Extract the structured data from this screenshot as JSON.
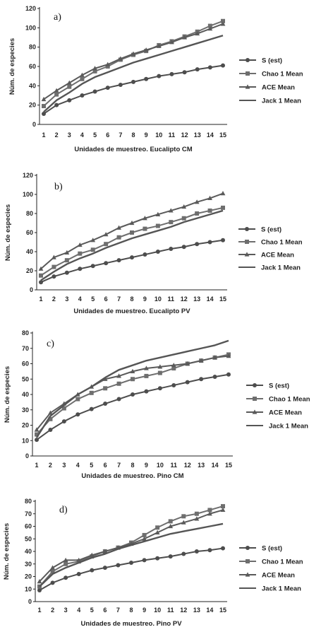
{
  "chart_data": [
    {
      "type": "line",
      "panel_label": "a)",
      "xlabel": "Unidades de muestreo. Eucalipto CM",
      "ylabel": "Núm. de especies",
      "ylim": [
        0,
        120
      ],
      "yticks": [
        0,
        20,
        40,
        60,
        80,
        100,
        120
      ],
      "x": [
        1,
        2,
        3,
        4,
        5,
        6,
        7,
        8,
        9,
        10,
        11,
        12,
        13,
        14,
        15
      ],
      "legend_position": "right",
      "series": [
        {
          "name": "S (est)",
          "marker": "circle",
          "values": [
            11,
            20,
            25,
            30,
            34,
            38,
            41,
            44,
            47,
            50,
            52,
            54,
            57,
            59,
            61
          ]
        },
        {
          "name": "Chao 1 Mean",
          "marker": "square",
          "values": [
            19,
            31,
            39,
            47,
            55,
            60,
            67,
            72,
            76,
            82,
            86,
            91,
            96,
            102,
            107
          ]
        },
        {
          "name": "ACE Mean",
          "marker": "triangle",
          "values": [
            26,
            35,
            43,
            51,
            58,
            62,
            68,
            73,
            77,
            81,
            85,
            90,
            94,
            99,
            104
          ]
        },
        {
          "name": "Jack 1 Mean",
          "marker": "none",
          "values": [
            13,
            25,
            33,
            42,
            49,
            54,
            59,
            64,
            68,
            72,
            76,
            80,
            84,
            88,
            92
          ]
        }
      ]
    },
    {
      "type": "line",
      "panel_label": "b)",
      "xlabel": "Unidades de muestreo. Eucalipto PV",
      "ylabel": "Núm. de especies",
      "ylim": [
        0,
        120
      ],
      "yticks": [
        0,
        20,
        40,
        60,
        80,
        100,
        120
      ],
      "x": [
        1,
        2,
        3,
        4,
        5,
        6,
        7,
        8,
        9,
        10,
        11,
        12,
        13,
        14,
        15
      ],
      "legend_position": "right",
      "series": [
        {
          "name": "S (est)",
          "marker": "circle",
          "values": [
            8,
            14,
            18,
            22,
            25,
            28,
            31,
            34,
            37,
            40,
            43,
            45,
            48,
            50,
            52
          ]
        },
        {
          "name": "Chao 1 Mean",
          "marker": "square",
          "values": [
            15,
            24,
            31,
            38,
            42,
            48,
            55,
            60,
            64,
            67,
            71,
            75,
            80,
            83,
            86
          ]
        },
        {
          "name": "ACE Mean",
          "marker": "triangle",
          "values": [
            22,
            34,
            39,
            47,
            52,
            58,
            65,
            70,
            75,
            79,
            83,
            87,
            92,
            96,
            101
          ]
        },
        {
          "name": "Jack 1 Mean",
          "marker": "none",
          "values": [
            10,
            19,
            27,
            33,
            38,
            44,
            49,
            54,
            58,
            62,
            66,
            71,
            75,
            79,
            83
          ]
        }
      ]
    },
    {
      "type": "line",
      "panel_label": "c)",
      "xlabel": "Unidades de muestreo. Pino CM",
      "ylabel": "Núm. de especies",
      "ylim": [
        0,
        80
      ],
      "yticks": [
        0,
        10,
        20,
        30,
        40,
        50,
        60,
        70,
        80
      ],
      "x": [
        1,
        2,
        3,
        4,
        5,
        6,
        7,
        8,
        9,
        10,
        11,
        12,
        13,
        14,
        15
      ],
      "legend_position": "right",
      "series": [
        {
          "name": "S (est)",
          "marker": "circle",
          "values": [
            10.5,
            17,
            22.5,
            27,
            30.5,
            34,
            37,
            40,
            42,
            44,
            46,
            48,
            50,
            51.5,
            53
          ]
        },
        {
          "name": "Chao 1 Mean",
          "marker": "square",
          "values": [
            14,
            24,
            31,
            37,
            41,
            44,
            47,
            50,
            52,
            54,
            57,
            60,
            62,
            64,
            66
          ]
        },
        {
          "name": "ACE Mean",
          "marker": "triangle",
          "values": [
            17,
            28,
            34,
            40,
            45,
            50,
            52,
            55,
            57,
            58,
            59,
            60,
            62,
            64,
            65
          ]
        },
        {
          "name": "Jack 1 Mean",
          "marker": "none",
          "values": [
            12,
            26,
            33,
            40,
            45,
            51,
            56,
            59,
            62,
            64,
            66,
            68,
            70,
            72,
            75
          ]
        }
      ]
    },
    {
      "type": "line",
      "panel_label": "d)",
      "xlabel": "Unidades de muestreo. Pino PV",
      "ylabel": "Núm. de especies",
      "ylim": [
        0,
        80
      ],
      "yticks": [
        0,
        10,
        20,
        30,
        40,
        50,
        60,
        70,
        80
      ],
      "x": [
        1,
        2,
        3,
        4,
        5,
        6,
        7,
        8,
        9,
        10,
        11,
        12,
        13,
        14,
        15
      ],
      "legend_position": "right",
      "series": [
        {
          "name": "S (est)",
          "marker": "circle",
          "values": [
            9,
            15,
            19,
            22,
            25,
            27,
            29,
            31,
            33,
            34.5,
            36,
            38,
            40,
            41,
            42.5
          ]
        },
        {
          "name": "Chao 1 Mean",
          "marker": "square",
          "values": [
            12,
            24,
            30,
            32,
            36,
            40,
            43,
            47,
            53,
            59,
            64,
            68,
            70,
            73,
            76
          ]
        },
        {
          "name": "ACE Mean",
          "marker": "triangle",
          "values": [
            16,
            27,
            33,
            33,
            37,
            40,
            43,
            46,
            50,
            55,
            60,
            63,
            66,
            70,
            73
          ]
        },
        {
          "name": "Jack 1 Mean",
          "marker": "none",
          "values": [
            12,
            22,
            27,
            31,
            35,
            38,
            42,
            45,
            48,
            51,
            54,
            56,
            58,
            60,
            62
          ]
        }
      ]
    }
  ],
  "colors": {
    "S (est)": "#4d4d4d",
    "Chao 1 Mean": "#6e6e6e",
    "ACE Mean": "#5a5a5a",
    "Jack 1 Mean": "#555555",
    "axis": "#222222"
  }
}
